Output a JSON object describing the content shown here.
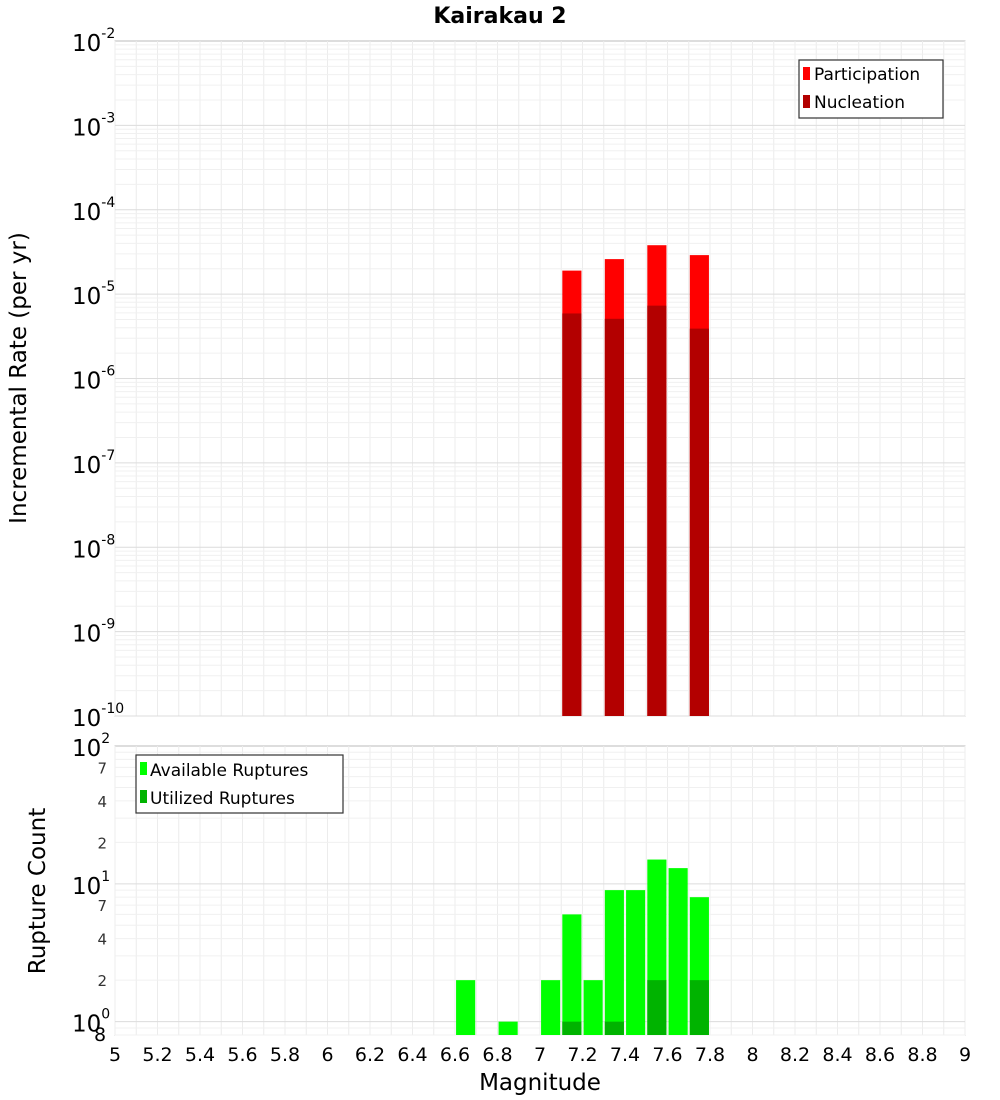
{
  "chart_data": [
    {
      "type": "bar",
      "title": "Kairakau 2",
      "xlabel": "Magnitude",
      "ylabel": "Incremental Rate (per yr)",
      "yscale": "log",
      "ylim": [
        1e-10,
        0.01
      ],
      "xlim": [
        5,
        9
      ],
      "bar_width": 0.09,
      "x": [
        7.15,
        7.35,
        7.55,
        7.75
      ],
      "series": [
        {
          "name": "Participation",
          "color": "#ff0000",
          "values": [
            1.9e-05,
            2.6e-05,
            3.8e-05,
            2.9e-05
          ]
        },
        {
          "name": "Nucleation",
          "color": "#b30000",
          "values": [
            5.9e-06,
            5.1e-06,
            7.3e-06,
            3.9e-06
          ]
        }
      ],
      "legend": "top-right",
      "grid": true
    },
    {
      "type": "bar",
      "xlabel": "Magnitude",
      "ylabel": "Rupture Count",
      "yscale": "log",
      "ylim": [
        0.8,
        100
      ],
      "xlim": [
        5,
        9
      ],
      "bar_width": 0.09,
      "x": [
        6.65,
        6.85,
        7.05,
        7.15,
        7.25,
        7.35,
        7.45,
        7.55,
        7.65,
        7.75
      ],
      "series": [
        {
          "name": "Available Ruptures",
          "color": "#00ff00",
          "values": [
            2,
            1,
            2,
            6,
            2,
            9,
            9,
            15,
            13,
            8
          ]
        },
        {
          "name": "Utilized Ruptures",
          "color": "#00b300",
          "values": [
            0,
            0,
            0,
            1,
            0,
            1,
            0,
            2,
            0,
            2
          ]
        }
      ],
      "legend": "top-left",
      "grid": true
    }
  ],
  "x_ticks": [
    "5",
    "5.2",
    "5.4",
    "5.6",
    "5.8",
    "6",
    "6.2",
    "6.4",
    "6.6",
    "6.8",
    "7",
    "7.2",
    "7.4",
    "7.6",
    "7.8",
    "8",
    "8.2",
    "8.4",
    "8.6",
    "8.8",
    "9"
  ],
  "top_y_ticks": [
    {
      "base": "10",
      "exp": "-2"
    },
    {
      "base": "10",
      "exp": "-3"
    },
    {
      "base": "10",
      "exp": "-4"
    },
    {
      "base": "10",
      "exp": "-5"
    },
    {
      "base": "10",
      "exp": "-6"
    },
    {
      "base": "10",
      "exp": "-7"
    },
    {
      "base": "10",
      "exp": "-8"
    },
    {
      "base": "10",
      "exp": "-9"
    },
    {
      "base": "10",
      "exp": "-10"
    }
  ],
  "bottom_y_ticks": {
    "decades": [
      {
        "base": "10",
        "exp": "2"
      },
      {
        "base": "10",
        "exp": "1"
      },
      {
        "base": "10",
        "exp": "0"
      }
    ],
    "minor_labels": [
      "7",
      "4",
      "2",
      "7",
      "4",
      "2",
      "8"
    ]
  }
}
